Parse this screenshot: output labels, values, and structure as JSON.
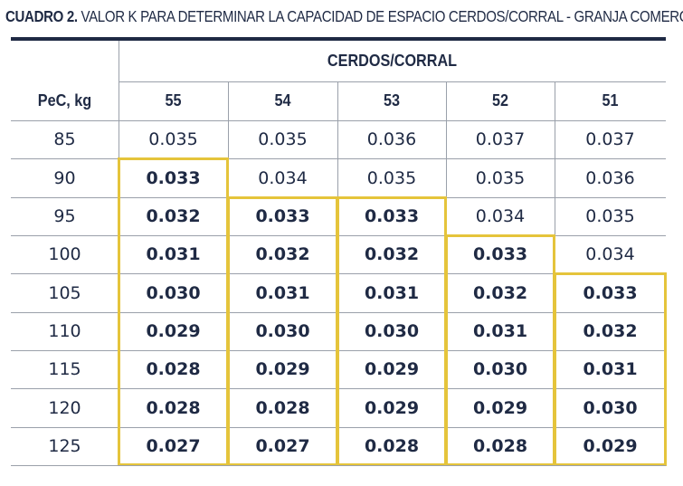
{
  "title": {
    "prefix": "CUADRO 2.",
    "text": " VALOR K PARA DETERMINAR LA CAPACIDAD DE ESPACIO CERDOS/CORRAL - GRANJA COMERCIAL"
  },
  "table": {
    "group_header": "CERDOS/CORRAL",
    "row_header": "PeC, kg",
    "columns": [
      "55",
      "54",
      "53",
      "52",
      "51"
    ],
    "rows": [
      {
        "label": "85",
        "values": [
          "0.035",
          "0.035",
          "0.036",
          "0.037",
          "0.037"
        ],
        "bold": [
          false,
          false,
          false,
          false,
          false
        ]
      },
      {
        "label": "90",
        "values": [
          "0.033",
          "0.034",
          "0.035",
          "0.035",
          "0.036"
        ],
        "bold": [
          true,
          false,
          false,
          false,
          false
        ]
      },
      {
        "label": "95",
        "values": [
          "0.032",
          "0.033",
          "0.033",
          "0.034",
          "0.035"
        ],
        "bold": [
          true,
          true,
          true,
          false,
          false
        ]
      },
      {
        "label": "100",
        "values": [
          "0.031",
          "0.032",
          "0.032",
          "0.033",
          "0.034"
        ],
        "bold": [
          true,
          true,
          true,
          true,
          false
        ]
      },
      {
        "label": "105",
        "values": [
          "0.030",
          "0.031",
          "0.031",
          "0.032",
          "0.033"
        ],
        "bold": [
          true,
          true,
          true,
          true,
          true
        ]
      },
      {
        "label": "110",
        "values": [
          "0.029",
          "0.030",
          "0.030",
          "0.031",
          "0.032"
        ],
        "bold": [
          true,
          true,
          true,
          true,
          true
        ]
      },
      {
        "label": "115",
        "values": [
          "0.028",
          "0.029",
          "0.029",
          "0.030",
          "0.031"
        ],
        "bold": [
          true,
          true,
          true,
          true,
          true
        ]
      },
      {
        "label": "120",
        "values": [
          "0.028",
          "0.028",
          "0.029",
          "0.029",
          "0.030"
        ],
        "bold": [
          true,
          true,
          true,
          true,
          true
        ]
      },
      {
        "label": "125",
        "values": [
          "0.027",
          "0.027",
          "0.028",
          "0.028",
          "0.029"
        ],
        "bold": [
          true,
          true,
          true,
          true,
          true
        ]
      }
    ]
  },
  "colors": {
    "text": "#1f2a44",
    "rule": "#1f2a44",
    "gridline": "#9aa0aa",
    "highlight": "#e5c43b"
  }
}
